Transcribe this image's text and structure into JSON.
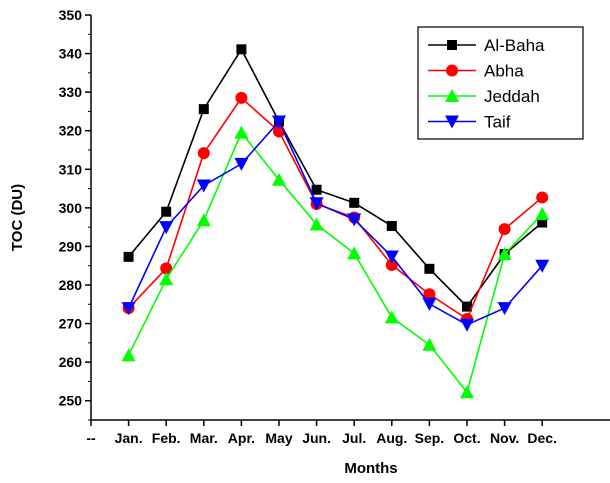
{
  "chart_data": {
    "type": "line",
    "xlabel": "Months",
    "ylabel": "TOC (DU)",
    "ylim": [
      245,
      350
    ],
    "yticks": [
      250,
      260,
      270,
      280,
      290,
      300,
      310,
      320,
      330,
      340,
      350
    ],
    "x_extra_tick_label": "--",
    "categories": [
      "Jan.",
      "Feb.",
      "Mar.",
      "Apr.",
      "May",
      "Jun.",
      "Jul.",
      "Aug.",
      "Sep.",
      "Oct.",
      "Nov.",
      "Dec."
    ],
    "legend_position": "top-right",
    "grid": false,
    "series": [
      {
        "name": "Al-Baha",
        "color": "#000000",
        "marker": "square",
        "values": [
          287.3,
          299.0,
          325.6,
          341.1,
          322.4,
          304.7,
          301.3,
          295.3,
          284.2,
          274.4,
          288.0,
          296.2
        ]
      },
      {
        "name": "Abha",
        "color": "#ff0000",
        "marker": "circle",
        "values": [
          274.0,
          284.3,
          314.2,
          328.5,
          319.8,
          301.0,
          297.5,
          285.2,
          277.6,
          271.2,
          294.5,
          302.7
        ]
      },
      {
        "name": "Jeddah",
        "color": "#00ff00",
        "marker": "triangle-up",
        "values": [
          261.8,
          281.5,
          296.8,
          319.5,
          307.3,
          295.7,
          288.2,
          271.6,
          264.5,
          252.2,
          288.0,
          298.4
        ]
      },
      {
        "name": "Taif",
        "color": "#0000ff",
        "marker": "triangle-down",
        "values": [
          274.0,
          295.0,
          305.8,
          311.4,
          322.4,
          301.2,
          297.0,
          287.4,
          275.1,
          269.7,
          274.0,
          285.0
        ]
      }
    ]
  }
}
